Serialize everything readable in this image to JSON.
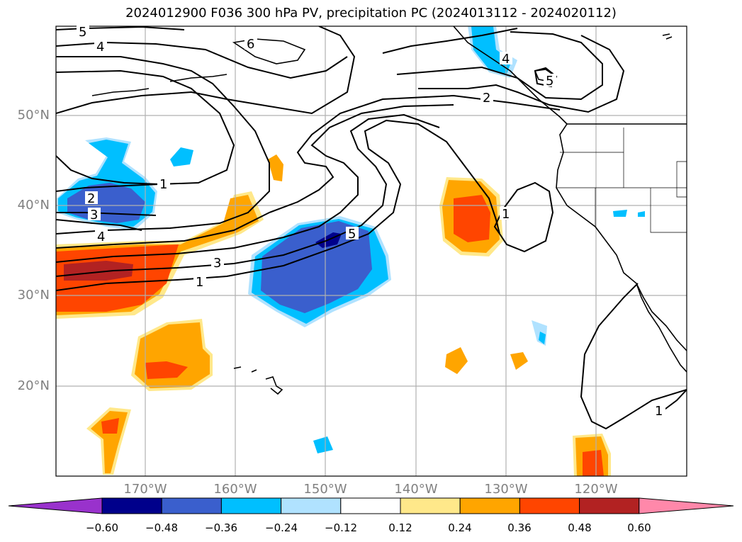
{
  "title": "2024012900 F036 300 hPa PV, precipitation PC (2024013112 - 2024020112)",
  "lat_labels": [
    "50°N",
    "40°N",
    "30°N",
    "20°N"
  ],
  "lon_labels": [
    "170°W",
    "160°W",
    "150°W",
    "140°W",
    "130°W",
    "120°W"
  ],
  "colorbar": {
    "ticks": [
      "−0.60",
      "−0.48",
      "−0.36",
      "−0.24",
      "−0.12",
      "0.12",
      "0.24",
      "0.36",
      "0.48",
      "0.60"
    ],
    "colors": [
      "#9932cc",
      "#00008b",
      "#3a5fcd",
      "#00bfff",
      "#b0e2ff",
      "#ffffff",
      "#ffe88a",
      "#ffa500",
      "#ff4500",
      "#b22222",
      "#ff88aa"
    ]
  },
  "contour_labels": [
    "5",
    "4",
    "6",
    "4",
    "5",
    "2",
    "1",
    "2",
    "3",
    "4",
    "5",
    "3",
    "1",
    "1",
    "1"
  ]
}
